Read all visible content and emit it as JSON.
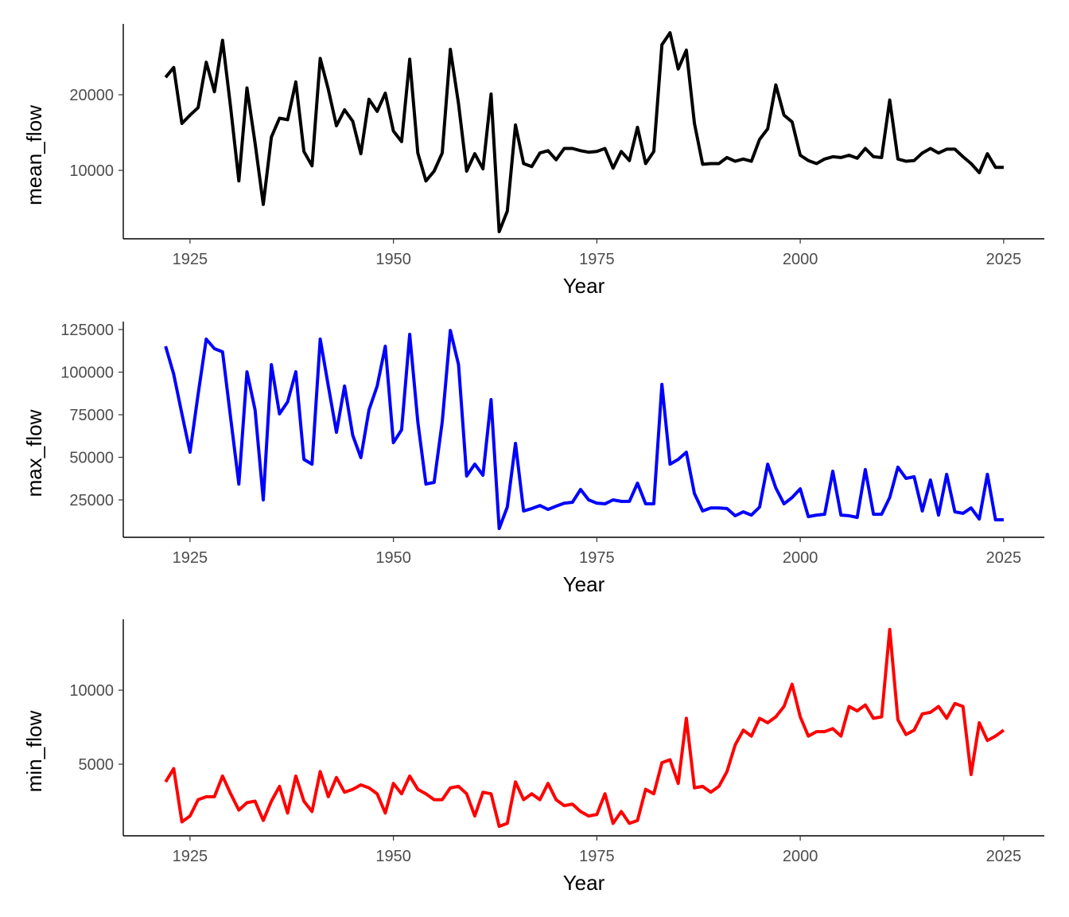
{
  "chart_data": [
    {
      "type": "line",
      "xlabel": "Year",
      "ylabel": "mean_flow",
      "color": "#000000",
      "xlim": [
        1916.8,
        2030.0
      ],
      "ylim": [
        950,
        29370
      ],
      "xticks": [
        1925,
        1950,
        1975,
        2000,
        2025
      ],
      "yticks": [
        10000,
        20000
      ],
      "x_start": 1922,
      "values": [
        22300,
        23600,
        16200,
        17300,
        18300,
        24300,
        20400,
        27200,
        18300,
        8600,
        20900,
        13600,
        5500,
        14400,
        16900,
        16700,
        21700,
        12500,
        10600,
        24800,
        20700,
        15900,
        18000,
        16500,
        12200,
        19400,
        17800,
        20200,
        15200,
        13800,
        24700,
        12300,
        8600,
        9900,
        12300,
        26000,
        18800,
        9900,
        12200,
        10200,
        20100,
        1900,
        4600,
        16000,
        10900,
        10500,
        12300,
        12600,
        11400,
        12900,
        12900,
        12600,
        12400,
        12500,
        12900,
        10300,
        12500,
        11300,
        15700,
        10900,
        12500,
        26600,
        28200,
        23400,
        25900,
        16200,
        10800,
        10900,
        10900,
        11700,
        11200,
        11500,
        11200,
        14100,
        15500,
        21300,
        17300,
        16400,
        12000,
        11300,
        10900,
        11500,
        11800,
        11700,
        12000,
        11600,
        12900,
        11800,
        11700,
        19300,
        11500,
        11200,
        11300,
        12300,
        12900,
        12300,
        12800,
        12800,
        11800,
        10900,
        9700,
        12200,
        10400,
        10400
      ]
    },
    {
      "type": "line",
      "xlabel": "Year",
      "ylabel": "max_flow",
      "color": "#0000FF",
      "xlim": [
        1916.8,
        2030.0
      ],
      "ylim": [
        3040,
        129670
      ],
      "xticks": [
        1925,
        1950,
        1975,
        2000,
        2025
      ],
      "yticks": [
        25000,
        50000,
        75000,
        100000,
        125000
      ],
      "x_start": 1922,
      "values": [
        115200,
        98800,
        75500,
        53000,
        87100,
        119400,
        113800,
        111900,
        73100,
        34300,
        100200,
        77800,
        25000,
        104400,
        75500,
        82500,
        100200,
        48800,
        46000,
        119400,
        91800,
        64700,
        91800,
        62900,
        49800,
        77800,
        91800,
        115200,
        58600,
        66100,
        122200,
        70800,
        34300,
        35300,
        70800,
        124500,
        104400,
        39000,
        46000,
        39500,
        83900,
        8200,
        20800,
        58200,
        18500,
        19900,
        21700,
        19400,
        21300,
        23100,
        23600,
        31100,
        25000,
        23100,
        22700,
        25000,
        24100,
        24100,
        34800,
        22700,
        22700,
        92800,
        46000,
        48800,
        53000,
        28700,
        18500,
        20300,
        20300,
        19900,
        15700,
        18000,
        16100,
        20800,
        46000,
        32000,
        22700,
        26400,
        31500,
        15200,
        16100,
        16600,
        41800,
        16100,
        15700,
        14700,
        42800,
        16600,
        16600,
        26400,
        44200,
        37600,
        38600,
        18500,
        36700,
        16100,
        40000,
        18000,
        17100,
        20300,
        13800,
        40000,
        13300,
        13300
      ]
    },
    {
      "type": "line",
      "xlabel": "Year",
      "ylabel": "min_flow",
      "color": "#FF0000",
      "xlim": [
        1916.8,
        2030.0
      ],
      "ylim": [
        160,
        14790
      ],
      "xticks": [
        1925,
        1950,
        1975,
        2000,
        2025
      ],
      "yticks": [
        5000,
        10000
      ],
      "x_start": 1922,
      "values": [
        3800,
        4700,
        1100,
        1500,
        2600,
        2800,
        2800,
        4200,
        3000,
        1900,
        2400,
        2500,
        1200,
        2500,
        3500,
        1700,
        4200,
        2500,
        1800,
        4500,
        2800,
        4100,
        3100,
        3300,
        3600,
        3400,
        3000,
        1700,
        3700,
        3000,
        4200,
        3300,
        3000,
        2600,
        2600,
        3400,
        3500,
        3000,
        1500,
        3100,
        3000,
        800,
        1000,
        3800,
        2600,
        3000,
        2600,
        3700,
        2600,
        2200,
        2300,
        1800,
        1500,
        1600,
        3000,
        1000,
        1800,
        1000,
        1200,
        3300,
        3000,
        5100,
        5300,
        3700,
        8100,
        3400,
        3500,
        3100,
        3500,
        4500,
        6300,
        7300,
        6900,
        8100,
        7800,
        8200,
        8900,
        10400,
        8200,
        6900,
        7200,
        7200,
        7400,
        6900,
        8900,
        8600,
        9000,
        8100,
        8200,
        14100,
        8000,
        7000,
        7300,
        8400,
        8500,
        8900,
        8100,
        9100,
        8900,
        4300,
        7800,
        6600,
        6900,
        7300
      ]
    }
  ]
}
